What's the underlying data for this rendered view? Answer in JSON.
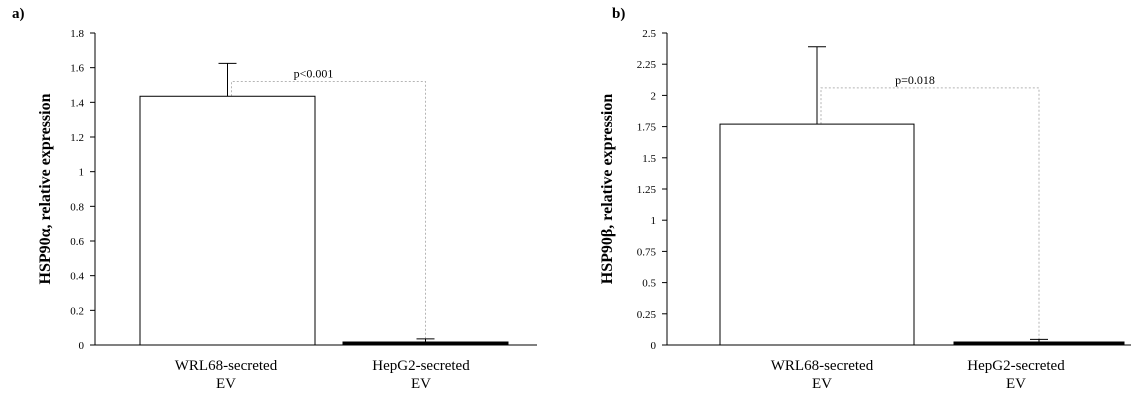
{
  "chart_data": [
    {
      "panel_label": "a)",
      "type": "bar",
      "categories": [
        [
          "WRL68-secreted",
          "EV"
        ],
        [
          "HepG2-secreted",
          "EV"
        ]
      ],
      "values": [
        1.435,
        0.015
      ],
      "error_upper": [
        1.625,
        0.035
      ],
      "ylabel": "HSP90α, relative expression",
      "ylim": [
        0,
        1.8
      ],
      "yticks": [
        0,
        0.2,
        0.4,
        0.6,
        0.8,
        1,
        1.2,
        1.4,
        1.6,
        1.8
      ],
      "ytick_labels": [
        "0",
        "0.2",
        "0.4",
        "0.6",
        "0.8",
        "1",
        "1.2",
        "1.4",
        "1.6",
        "1.8"
      ],
      "bar_fill": [
        "#ffffff",
        "#000000"
      ],
      "significance": {
        "label": "p<0.001",
        "level": 1.52
      },
      "grid": false
    },
    {
      "panel_label": "b)",
      "type": "bar",
      "categories": [
        [
          "WRL68-secreted",
          "EV"
        ],
        [
          "HepG2-secreted",
          "EV"
        ]
      ],
      "values": [
        1.77,
        0.02
      ],
      "error_upper": [
        2.39,
        0.045
      ],
      "ylabel": "HSP90β, relative expression",
      "ylim": [
        0,
        2.5
      ],
      "yticks": [
        0,
        0.25,
        0.5,
        0.75,
        1,
        1.25,
        1.5,
        1.75,
        2,
        2.25,
        2.5
      ],
      "ytick_labels": [
        "0",
        "0.25",
        "0.5",
        "0.75",
        "1",
        "1.25",
        "1.5",
        "1.75",
        "2",
        "2.25",
        "2.5"
      ],
      "bar_fill": [
        "#ffffff",
        "#000000"
      ],
      "significance": {
        "label": "p=0.018",
        "level": 2.06
      },
      "grid": false
    }
  ]
}
